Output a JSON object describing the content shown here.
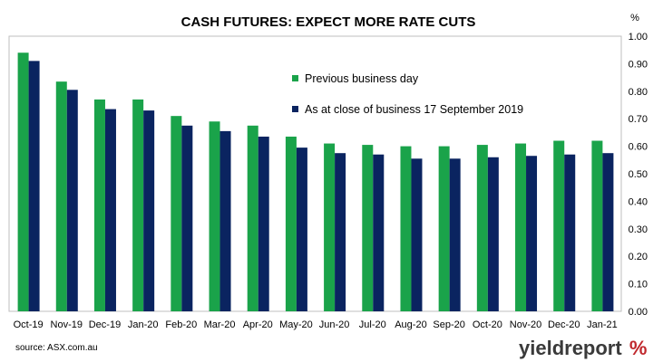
{
  "chart_data": {
    "type": "bar",
    "title": "CASH FUTURES: EXPECT MORE RATE CUTS",
    "ylabel": "%",
    "xlabel": "",
    "ylim": [
      0,
      1.0
    ],
    "yticks": [
      "0.00",
      "0.10",
      "0.20",
      "0.30",
      "0.40",
      "0.50",
      "0.60",
      "0.70",
      "0.80",
      "0.90",
      "1.00"
    ],
    "y_axis_position": "right",
    "legend_position": "top-center",
    "grid": false,
    "categories": [
      "Oct-19",
      "Nov-19",
      "Dec-19",
      "Jan-20",
      "Feb-20",
      "Mar-20",
      "Apr-20",
      "May-20",
      "Jun-20",
      "Jul-20",
      "Aug-20",
      "Sep-20",
      "Oct-20",
      "Nov-20",
      "Dec-20",
      "Jan-21"
    ],
    "series": [
      {
        "name": "Previous business day",
        "color": "#1aa34a",
        "values": [
          0.94,
          0.835,
          0.77,
          0.77,
          0.71,
          0.69,
          0.675,
          0.635,
          0.61,
          0.605,
          0.6,
          0.6,
          0.605,
          0.61,
          0.62,
          0.62
        ]
      },
      {
        "name": "As at close of business 17 September 2019",
        "color": "#0a2460",
        "values": [
          0.91,
          0.805,
          0.735,
          0.73,
          0.675,
          0.655,
          0.635,
          0.595,
          0.575,
          0.57,
          0.555,
          0.555,
          0.56,
          0.565,
          0.57,
          0.575
        ]
      }
    ]
  },
  "source": "source: ASX.com.au",
  "brand": {
    "text": "yieldreport",
    "symbol": "%",
    "text_color": "#3a3a3a",
    "symbol_color": "#c0282d"
  }
}
